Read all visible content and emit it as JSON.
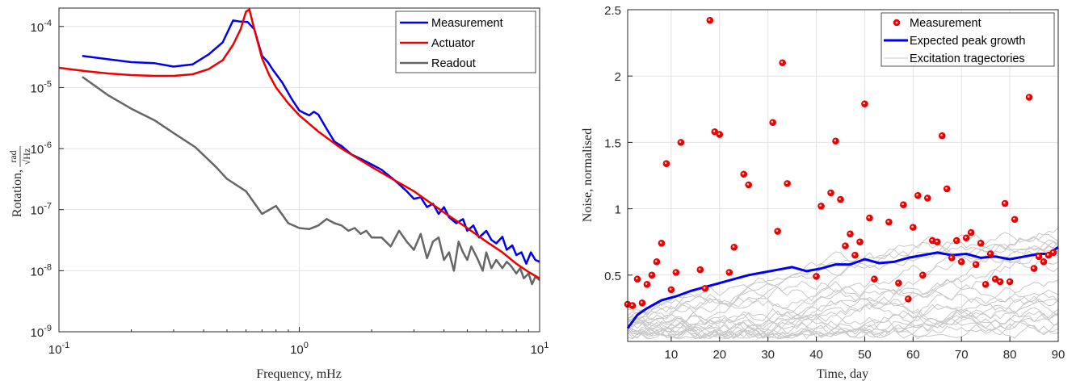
{
  "chart_data": [
    {
      "type": "line",
      "xscale": "log",
      "yscale": "log",
      "xlim": [
        0.1,
        10
      ],
      "ylim": [
        1e-09,
        0.0002
      ],
      "grid": true,
      "xlabel": "Frequency, mHz",
      "ylabel_main": "Rotation, ",
      "ylabel_num": "rad",
      "ylabel_den": "√Hz",
      "legend_position": "top-right",
      "xticks": [
        {
          "value": 0.1,
          "base": "10",
          "exp": "-1"
        },
        {
          "value": 1,
          "base": "10",
          "exp": "0"
        },
        {
          "value": 10,
          "base": "10",
          "exp": "1"
        }
      ],
      "yticks": [
        {
          "value": 1e-09,
          "base": "10",
          "exp": "-9"
        },
        {
          "value": 1e-08,
          "base": "10",
          "exp": "-8"
        },
        {
          "value": 1e-07,
          "base": "10",
          "exp": "-7"
        },
        {
          "value": 1e-06,
          "base": "10",
          "exp": "-6"
        },
        {
          "value": 1e-05,
          "base": "10",
          "exp": "-5"
        },
        {
          "value": 0.0001,
          "base": "10",
          "exp": "-4"
        }
      ],
      "series": [
        {
          "name": "Measurement",
          "color": "#0000ee",
          "x": [
            0.125,
            0.16,
            0.2,
            0.25,
            0.3,
            0.36,
            0.42,
            0.48,
            0.53,
            0.57,
            0.61,
            0.65,
            0.7,
            0.74,
            0.78,
            0.85,
            0.93,
            1.0,
            1.05,
            1.1,
            1.15,
            1.2,
            1.3,
            1.4,
            1.5,
            1.65,
            1.8,
            2.0,
            2.2,
            2.5,
            2.8,
            3.0,
            3.2,
            3.4,
            3.6,
            3.8,
            4.0,
            4.2,
            4.5,
            4.8,
            5.0,
            5.3,
            5.6,
            6.0,
            6.3,
            6.6,
            7.0,
            7.3,
            7.7,
            8.0,
            8.4,
            8.8,
            9.2,
            9.6,
            10.0
          ],
          "y": [
            3.3e-05,
            2.9e-05,
            2.6e-05,
            2.5e-05,
            2.2e-05,
            2.4e-05,
            3.5e-05,
            5.5e-05,
            0.000125,
            0.00012,
            0.000118,
            9e-05,
            3.3e-05,
            2.6e-05,
            1.9e-05,
            1.2e-05,
            6.5e-06,
            4.2e-06,
            3.8e-06,
            3.5e-06,
            4e-06,
            3.6e-06,
            2.1e-06,
            1.3e-06,
            1.1e-06,
            8e-07,
            6.8e-07,
            5.5e-07,
            4.5e-07,
            3e-07,
            2e-07,
            1.5e-07,
            1.6e-07,
            1.1e-07,
            1.25e-07,
            8.5e-08,
            1.1e-07,
            7.5e-08,
            6e-08,
            7e-08,
            4.5e-08,
            5.5e-08,
            3.5e-08,
            4.5e-08,
            3.2e-08,
            2.8e-08,
            3.6e-08,
            2.2e-08,
            2.6e-08,
            1.8e-08,
            2e-08,
            1.3e-08,
            2e-08,
            1.5e-08,
            1.4e-08
          ]
        },
        {
          "name": "Actuator",
          "color": "#ee0000",
          "x": [
            0.1,
            0.13,
            0.16,
            0.2,
            0.25,
            0.3,
            0.36,
            0.42,
            0.48,
            0.53,
            0.57,
            0.6,
            0.62,
            0.65,
            0.7,
            0.75,
            0.8,
            0.9,
            1.0,
            1.2,
            1.5,
            2.0,
            2.5,
            3.0,
            4.0,
            5.0,
            6.0,
            7.0,
            8.0,
            9.0,
            10.0
          ],
          "y": [
            2.1e-05,
            1.85e-05,
            1.7e-05,
            1.6e-05,
            1.55e-05,
            1.55e-05,
            1.65e-05,
            2e-05,
            2.8e-05,
            5e-05,
            9e-05,
            0.000175,
            0.00019,
            9e-05,
            3e-05,
            1.6e-05,
            1e-05,
            5.5e-06,
            3.5e-06,
            1.9e-06,
            1e-06,
            5e-07,
            3e-07,
            2e-07,
            9e-08,
            5e-08,
            3e-08,
            2e-08,
            1.3e-08,
            9.5e-09,
            7.5e-09
          ]
        },
        {
          "name": "Readout",
          "color": "#666666",
          "x": [
            0.125,
            0.16,
            0.2,
            0.25,
            0.3,
            0.37,
            0.45,
            0.5,
            0.6,
            0.7,
            0.8,
            0.9,
            1.0,
            1.1,
            1.2,
            1.3,
            1.4,
            1.5,
            1.6,
            1.7,
            1.8,
            1.9,
            2.0,
            2.2,
            2.4,
            2.6,
            2.8,
            3.0,
            3.2,
            3.4,
            3.6,
            3.8,
            4.0,
            4.2,
            4.4,
            4.6,
            4.8,
            5.0,
            5.2,
            5.5,
            5.8,
            6.0,
            6.3,
            6.6,
            7.0,
            7.3,
            7.6,
            8.0,
            8.3,
            8.6,
            9.0,
            9.3,
            9.6,
            10.0
          ],
          "y": [
            1.5e-05,
            7.5e-06,
            4.5e-06,
            2.9e-06,
            1.8e-06,
            1.05e-06,
            5e-07,
            3.2e-07,
            2e-07,
            8.5e-08,
            1.15e-07,
            6e-08,
            5e-08,
            4.8e-08,
            5.5e-08,
            7e-08,
            6e-08,
            5.5e-08,
            4.5e-08,
            5e-08,
            4e-08,
            4.5e-08,
            3.5e-08,
            3.5e-08,
            2.5e-08,
            4.5e-08,
            3e-08,
            2.2e-08,
            4e-08,
            1.6e-08,
            3e-08,
            3.5e-08,
            1.5e-08,
            2e-08,
            1e-08,
            3e-08,
            2e-08,
            1.5e-08,
            2.5e-08,
            1.6e-08,
            1e-08,
            2e-08,
            1.1e-08,
            1.5e-08,
            1.1e-08,
            1.4e-08,
            1.2e-08,
            9e-09,
            1.1e-08,
            7.5e-09,
            9e-09,
            6e-09,
            8e-09,
            7e-09
          ]
        }
      ]
    },
    {
      "type": "scatter",
      "xlim": [
        1,
        90
      ],
      "ylim": [
        0,
        2.5
      ],
      "grid": true,
      "xlabel": "Time, day",
      "ylabel": "Noise, normalised",
      "legend_position": "top-right",
      "xticks": [
        10,
        20,
        30,
        40,
        50,
        60,
        70,
        80,
        90
      ],
      "yticks": [
        0.5,
        1,
        1.5,
        2,
        2.5
      ],
      "ytick_labels": [
        "0.5",
        "1",
        "1.5",
        "2",
        "2.5"
      ],
      "series": [
        {
          "name": "Measurement",
          "color": "#ee0000",
          "x": [
            1,
            2,
            3,
            4,
            5,
            6,
            7,
            8,
            9,
            10,
            11,
            12,
            16,
            17,
            18,
            19,
            20,
            22,
            23,
            25,
            26,
            31,
            32,
            33,
            34,
            40,
            41,
            43,
            44,
            45,
            46,
            47,
            48,
            49,
            50,
            51,
            52,
            55,
            57,
            58,
            59,
            60,
            61,
            62,
            63,
            64,
            65,
            66,
            67,
            68,
            69,
            70,
            71,
            72,
            73,
            74,
            75,
            76,
            77,
            78,
            79,
            80,
            81,
            84,
            85,
            86,
            87,
            88,
            89
          ],
          "y": [
            0.28,
            0.27,
            0.47,
            0.29,
            0.43,
            0.5,
            0.6,
            0.74,
            1.34,
            0.39,
            0.52,
            1.5,
            0.54,
            0.4,
            2.42,
            1.58,
            1.56,
            0.52,
            0.71,
            1.26,
            1.18,
            1.65,
            0.83,
            2.1,
            1.19,
            0.49,
            1.02,
            1.12,
            1.51,
            1.07,
            0.72,
            0.81,
            0.65,
            0.75,
            1.79,
            0.93,
            0.47,
            0.9,
            0.44,
            1.03,
            0.32,
            0.86,
            1.1,
            0.5,
            1.08,
            0.76,
            0.75,
            1.55,
            1.15,
            0.63,
            0.76,
            0.6,
            0.78,
            0.82,
            0.58,
            0.74,
            0.43,
            0.66,
            0.47,
            0.45,
            1.04,
            0.45,
            0.92,
            1.84,
            0.55,
            0.64,
            0.6,
            0.65,
            0.67
          ]
        },
        {
          "name": "Expected peak growth",
          "color": "#0000ee",
          "x": [
            1,
            3,
            5,
            8,
            11,
            14,
            17,
            20,
            23,
            26,
            29,
            32,
            35,
            38,
            41,
            44,
            47,
            50,
            53,
            56,
            59,
            62,
            65,
            68,
            71,
            74,
            77,
            80,
            83,
            86,
            88,
            90
          ],
          "y": [
            0.1,
            0.2,
            0.25,
            0.31,
            0.34,
            0.38,
            0.41,
            0.44,
            0.47,
            0.5,
            0.52,
            0.54,
            0.56,
            0.53,
            0.55,
            0.58,
            0.58,
            0.62,
            0.59,
            0.6,
            0.63,
            0.65,
            0.67,
            0.65,
            0.66,
            0.63,
            0.64,
            0.62,
            0.64,
            0.66,
            0.66,
            0.71
          ]
        },
        {
          "name": "Excitation tragectories",
          "color": "#c8c8c8"
        }
      ]
    }
  ]
}
